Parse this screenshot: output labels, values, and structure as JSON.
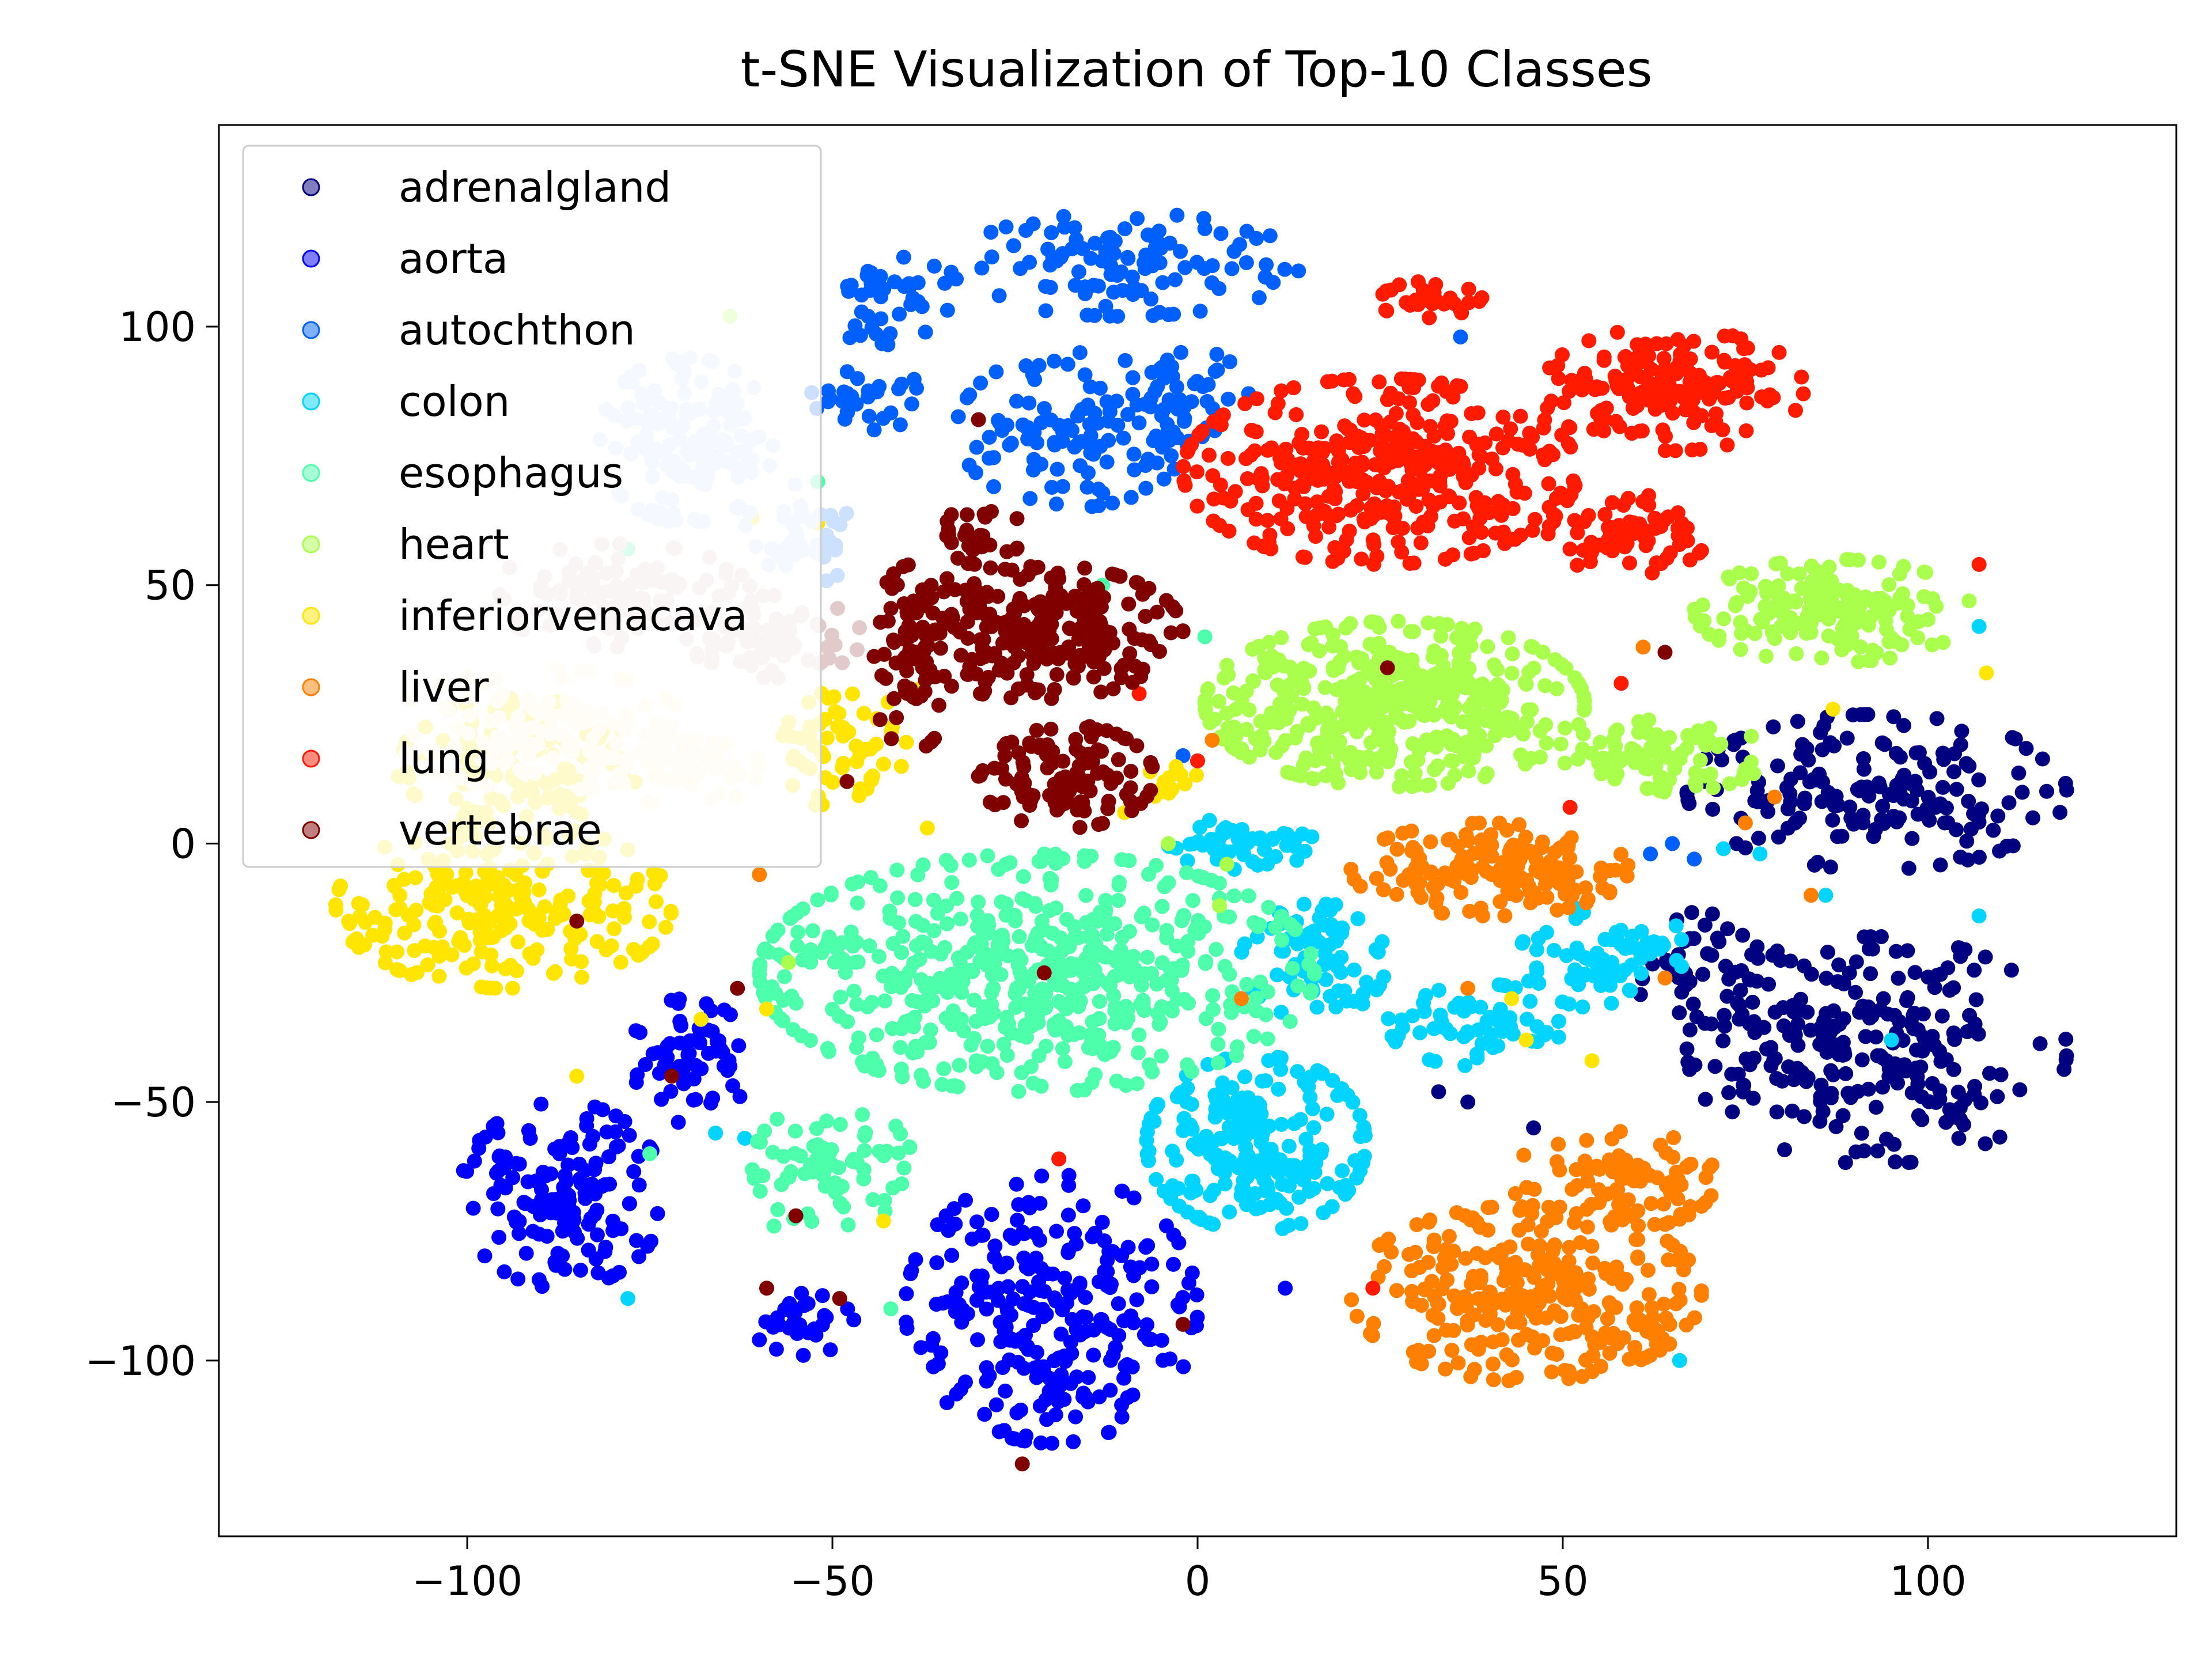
{
  "chart_data": {
    "type": "scatter",
    "title": "t-SNE Visualization of Top-10 Classes",
    "xlabel": "",
    "ylabel": "",
    "xlim": [
      -134,
      134
    ],
    "ylim": [
      -134,
      139
    ],
    "xticks": [
      -100,
      -50,
      0,
      50,
      100
    ],
    "yticks": [
      -100,
      -50,
      0,
      50,
      100
    ],
    "xtick_labels": [
      "−100",
      "−50",
      "0",
      "50",
      "100"
    ],
    "ytick_labels": [
      "−100",
      "−50",
      "0",
      "50",
      "100"
    ],
    "grid": false,
    "legend_position": "upper-left",
    "series": [
      {
        "name": "adrenalgland",
        "color": "#000080",
        "clusters": [
          {
            "cx": 93,
            "cy": 10,
            "rx": 26,
            "ry": 15,
            "n": 170
          },
          {
            "cx": 93,
            "cy": -40,
            "rx": 26,
            "ry": 22,
            "n": 240
          },
          {
            "cx": 70,
            "cy": -25,
            "rx": 10,
            "ry": 12,
            "n": 50
          }
        ],
        "points": [
          [
            37,
            -50
          ],
          [
            46,
            -55
          ],
          [
            33,
            -48
          ]
        ]
      },
      {
        "name": "aorta",
        "color": "#0000FF",
        "clusters": [
          {
            "cx": -87,
            "cy": -68,
            "rx": 14,
            "ry": 18,
            "n": 150
          },
          {
            "cx": -70,
            "cy": -42,
            "rx": 9,
            "ry": 12,
            "n": 60
          },
          {
            "cx": -20,
            "cy": -90,
            "rx": 20,
            "ry": 26,
            "n": 260
          },
          {
            "cx": -54,
            "cy": -93,
            "rx": 7,
            "ry": 6,
            "n": 30
          }
        ],
        "points": [
          [
            12,
            -86
          ],
          [
            -60,
            -96
          ],
          [
            -15,
            -108
          ]
        ]
      },
      {
        "name": "autochthon",
        "color": "#0060FF",
        "clusters": [
          {
            "cx": -10,
            "cy": 112,
            "rx": 24,
            "ry": 10,
            "n": 110
          },
          {
            "cx": -17,
            "cy": 80,
            "rx": 16,
            "ry": 15,
            "n": 110
          },
          {
            "cx": -42,
            "cy": 105,
            "rx": 8,
            "ry": 10,
            "n": 40
          },
          {
            "cx": -45,
            "cy": 86,
            "rx": 8,
            "ry": 6,
            "n": 30
          },
          {
            "cx": -2,
            "cy": 84,
            "rx": 10,
            "ry": 12,
            "n": 50
          }
        ],
        "points": [
          [
            36,
            98
          ],
          [
            65,
            0
          ],
          [
            -2,
            17
          ],
          [
            62,
            -2
          ],
          [
            68,
            -3
          ]
        ]
      },
      {
        "name": "colon",
        "color": "#00D4FF",
        "clusters": [
          {
            "cx": 8,
            "cy": -58,
            "rx": 15,
            "ry": 17,
            "n": 220
          },
          {
            "cx": 6,
            "cy": 0,
            "rx": 10,
            "ry": 5,
            "n": 50
          },
          {
            "cx": 16,
            "cy": -22,
            "rx": 10,
            "ry": 12,
            "n": 80
          },
          {
            "cx": 38,
            "cy": -35,
            "rx": 12,
            "ry": 8,
            "n": 60
          },
          {
            "cx": 56,
            "cy": -22,
            "rx": 12,
            "ry": 10,
            "n": 70
          }
        ],
        "points": [
          [
            -78,
            -88
          ],
          [
            107,
            42
          ],
          [
            77,
            -2
          ],
          [
            72,
            -1
          ],
          [
            -66,
            -56
          ],
          [
            86,
            -10
          ],
          [
            95,
            -38
          ],
          [
            107,
            -14
          ],
          [
            66,
            -100
          ],
          [
            -62,
            -57
          ]
        ]
      },
      {
        "name": "esophagus",
        "color": "#4DFFAA",
        "clusters": [
          {
            "cx": -22,
            "cy": -25,
            "rx": 38,
            "ry": 23,
            "n": 560
          },
          {
            "cx": -50,
            "cy": -62,
            "rx": 11,
            "ry": 12,
            "n": 70
          }
        ],
        "points": [
          [
            -64,
            102
          ],
          [
            -52,
            70
          ],
          [
            -13,
            50
          ],
          [
            -42,
            -90
          ],
          [
            -75,
            -60
          ],
          [
            -58,
            -74
          ],
          [
            -20,
            -7
          ],
          [
            -78,
            57
          ],
          [
            1,
            40
          ]
        ]
      },
      {
        "name": "heart",
        "color": "#AAFF4D",
        "clusters": [
          {
            "cx": 27,
            "cy": 27,
            "rx": 26,
            "ry": 16,
            "n": 440
          },
          {
            "cx": 87,
            "cy": 45,
            "rx": 19,
            "ry": 10,
            "n": 170
          },
          {
            "cx": 64,
            "cy": 17,
            "rx": 14,
            "ry": 7,
            "n": 80
          }
        ],
        "points": [
          [
            -64,
            102
          ],
          [
            -4,
            0
          ],
          [
            3,
            -12
          ],
          [
            -56,
            -23
          ],
          [
            4,
            -4
          ]
        ]
      },
      {
        "name": "inferiorvenacava",
        "color": "#FFE500",
        "clusters": [
          {
            "cx": -95,
            "cy": -12,
            "rx": 23,
            "ry": 16,
            "n": 240
          },
          {
            "cx": -93,
            "cy": 16,
            "rx": 17,
            "ry": 12,
            "n": 110
          },
          {
            "cx": -48,
            "cy": 18,
            "rx": 9,
            "ry": 12,
            "n": 60
          },
          {
            "cx": -5,
            "cy": 12,
            "rx": 5,
            "ry": 5,
            "n": 20
          }
        ],
        "points": [
          [
            -61,
            63
          ],
          [
            -52,
            62
          ],
          [
            -59,
            -32
          ],
          [
            -68,
            -34
          ],
          [
            -43,
            -73
          ],
          [
            43,
            -30
          ],
          [
            -37,
            3
          ],
          [
            -10,
            6
          ],
          [
            -38,
            30
          ],
          [
            108,
            33
          ],
          [
            87,
            26
          ],
          [
            45,
            -38
          ],
          [
            54,
            -42
          ],
          [
            -85,
            -45
          ]
        ]
      },
      {
        "name": "liver",
        "color": "#FF7F00",
        "clusters": [
          {
            "cx": 40,
            "cy": -5,
            "rx": 19,
            "ry": 9,
            "n": 170
          },
          {
            "cx": 45,
            "cy": -87,
            "rx": 24,
            "ry": 17,
            "n": 280
          },
          {
            "cx": 57,
            "cy": -65,
            "rx": 14,
            "ry": 10,
            "n": 90
          }
        ],
        "points": [
          [
            2,
            20
          ],
          [
            6,
            -30
          ],
          [
            -60,
            -6
          ],
          [
            37,
            -28
          ],
          [
            79,
            9
          ],
          [
            75,
            4
          ],
          [
            84,
            -10
          ],
          [
            64,
            -26
          ],
          [
            61,
            38
          ]
        ]
      },
      {
        "name": "lung",
        "color": "#FF1A00",
        "clusters": [
          {
            "cx": 25,
            "cy": 72,
            "rx": 27,
            "ry": 18,
            "n": 380
          },
          {
            "cx": 65,
            "cy": 88,
            "rx": 18,
            "ry": 12,
            "n": 170
          },
          {
            "cx": 59,
            "cy": 60,
            "rx": 11,
            "ry": 8,
            "n": 80
          },
          {
            "cx": 32,
            "cy": 105,
            "rx": 7,
            "ry": 4,
            "n": 30
          }
        ],
        "points": [
          [
            -19,
            -61
          ],
          [
            -8,
            29
          ],
          [
            0,
            16
          ],
          [
            24,
            -86
          ],
          [
            51,
            7
          ],
          [
            58,
            31
          ],
          [
            107,
            54
          ]
        ]
      },
      {
        "name": "vertebrae",
        "color": "#800000",
        "clusters": [
          {
            "cx": -22,
            "cy": 41,
            "rx": 20,
            "ry": 13,
            "n": 230
          },
          {
            "cx": -18,
            "cy": 13,
            "rx": 12,
            "ry": 10,
            "n": 110
          },
          {
            "cx": -39,
            "cy": 36,
            "rx": 6,
            "ry": 18,
            "n": 70
          },
          {
            "cx": -30,
            "cy": 60,
            "rx": 6,
            "ry": 6,
            "n": 30
          }
        ],
        "points": [
          [
            -30,
            82
          ],
          [
            26,
            34
          ],
          [
            64,
            37
          ],
          [
            -21,
            -25
          ],
          [
            -72,
            -45
          ],
          [
            -85,
            -15
          ],
          [
            -63,
            -28
          ],
          [
            -55,
            -72
          ],
          [
            -59,
            -86
          ],
          [
            -49,
            -88
          ],
          [
            -24,
            -120
          ],
          [
            -2,
            -93
          ],
          [
            -48,
            12
          ]
        ]
      },
      {
        "name": "",
        "color": "#CCE0FF",
        "clusters": [
          {
            "cx": -70,
            "cy": 78,
            "rx": 12,
            "ry": 16,
            "n": 140
          },
          {
            "cx": -54,
            "cy": 60,
            "rx": 8,
            "ry": 10,
            "n": 40
          }
        ],
        "points": []
      },
      {
        "name": "",
        "color": "#E2CACA",
        "clusters": [
          {
            "cx": -79,
            "cy": 48,
            "rx": 18,
            "ry": 10,
            "n": 110
          },
          {
            "cx": -58,
            "cy": 40,
            "rx": 12,
            "ry": 8,
            "n": 70
          }
        ],
        "points": []
      },
      {
        "name": "",
        "color": "#FFF6CC",
        "clusters": [
          {
            "cx": -90,
            "cy": 22,
            "rx": 20,
            "ry": 12,
            "n": 120
          },
          {
            "cx": -70,
            "cy": 15,
            "rx": 10,
            "ry": 8,
            "n": 60
          }
        ],
        "points": []
      }
    ]
  }
}
